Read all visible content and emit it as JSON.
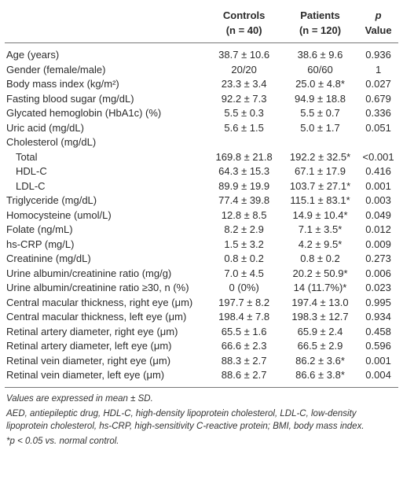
{
  "table": {
    "columns": [
      {
        "title": "Controls",
        "subtitle": "(n = 40)"
      },
      {
        "title": "Patients",
        "subtitle": "(n = 120)"
      },
      {
        "title": "p",
        "subtitle": "Value"
      }
    ],
    "rows": [
      [
        "Age (years)",
        "38.7 ± 10.6",
        "38.6 ± 9.6",
        "0.936"
      ],
      [
        "Gender (female/male)",
        "20/20",
        "60/60",
        "1"
      ],
      [
        "Body mass index (kg/m²)",
        "23.3 ± 3.4",
        "25.0 ± 4.8*",
        "0.027"
      ],
      [
        "Fasting blood sugar (mg/dL)",
        "92.2 ± 7.3",
        "94.9 ± 18.8",
        "0.679"
      ],
      [
        "Glycated hemoglobin (HbA1c) (%)",
        "5.5 ± 0.3",
        "5.5 ± 0.7",
        "0.336"
      ],
      [
        "Uric acid (mg/dL)",
        "5.6 ± 1.5",
        "5.0 ± 1.7",
        "0.051"
      ],
      {
        "label": "Cholesterol (mg/dL)",
        "subrows": [
          [
            "Total",
            "169.8 ± 21.8",
            "192.2 ± 32.5*",
            "<0.001"
          ],
          [
            "HDL-C",
            "64.3 ± 15.3",
            "67.1 ± 17.9",
            "0.416"
          ],
          [
            "LDL-C",
            "89.9 ± 19.9",
            "103.7 ± 27.1*",
            "0.001"
          ]
        ]
      },
      [
        "Triglyceride (mg/dL)",
        "77.4 ± 39.8",
        "115.1 ± 83.1*",
        "0.003"
      ],
      [
        "Homocysteine (umol/L)",
        "12.8 ± 8.5",
        "14.9 ± 10.4*",
        "0.049"
      ],
      [
        "Folate (ng/mL)",
        "8.2 ± 2.9",
        "7.1 ± 3.5*",
        "0.012"
      ],
      [
        "hs-CRP (mg/L)",
        "1.5 ± 3.2",
        "4.2 ± 9.5*",
        "0.009"
      ],
      [
        "Creatinine (mg/dL)",
        "0.8 ± 0.2",
        "0.8 ± 0.2",
        "0.273"
      ],
      [
        "Urine albumin/creatinine ratio (mg/g)",
        "7.0 ± 4.5",
        "20.2 ± 50.9*",
        "0.006"
      ],
      [
        "Urine albumin/creatinine ratio ≥30, n (%)",
        "0 (0%)",
        "14 (11.7%)*",
        "0.023"
      ],
      [
        "Central macular thickness, right eye (μm)",
        "197.7 ± 8.2",
        "197.4 ± 13.0",
        "0.995"
      ],
      [
        "Central macular thickness, left eye (μm)",
        "198.4 ± 7.8",
        "198.3 ± 12.7",
        "0.934"
      ],
      [
        "Retinal artery diameter, right eye (μm)",
        "65.5 ± 1.6",
        "65.9 ± 2.4",
        "0.458"
      ],
      [
        "Retinal artery diameter, left eye (μm)",
        "66.6 ± 2.3",
        "66.5 ± 2.9",
        "0.596"
      ],
      [
        "Retinal vein diameter, right eye (μm)",
        "88.3 ± 2.7",
        "86.2 ± 3.6*",
        "0.001"
      ],
      [
        "Retinal vein diameter, left eye (μm)",
        "88.6 ± 2.7",
        "86.6 ± 3.8*",
        "0.004"
      ]
    ],
    "notes": [
      "Values are expressed in mean ± SD.",
      "AED, antiepileptic drug, HDL-C, high-density lipoprotein cholesterol, LDL-C, low-density lipoprotein cholesterol, hs-CRP, high-sensitivity C-reactive protein; BMI, body mass index.",
      "*p < 0.05 vs. normal control."
    ]
  }
}
